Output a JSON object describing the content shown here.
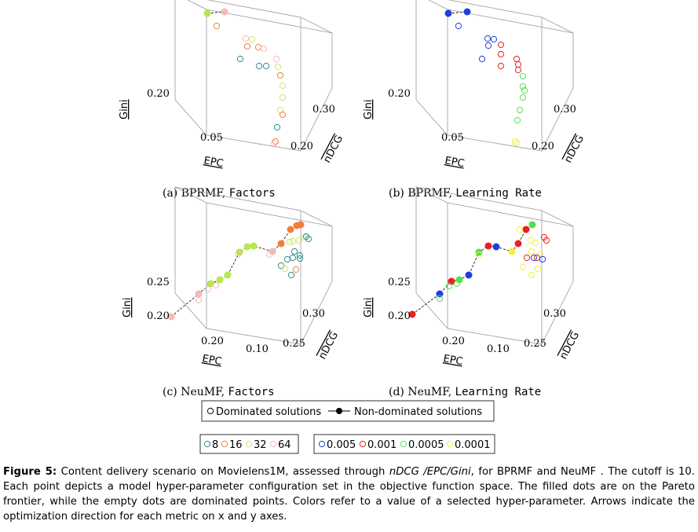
{
  "figure": {
    "subplots": [
      {
        "caption_prefix": "(a) BPRMF, ",
        "caption_param": "Factors",
        "gini_tick": "0.20",
        "epc_tick": "0.05",
        "ndcg_ticks": [
          "0.20",
          "0.30"
        ],
        "legend_group": "factors"
      },
      {
        "caption_prefix": "(b) BPRMF, ",
        "caption_param": "Learning Rate",
        "gini_tick": "0.20",
        "epc_tick": "0.05",
        "ndcg_ticks": [
          "0.20",
          "0.30"
        ],
        "legend_group": "lr"
      },
      {
        "caption_prefix": "(c) NeuMF, ",
        "caption_param": "Factors",
        "gini_ticks": [
          "0.20",
          "0.25"
        ],
        "epc_ticks": [
          "0.20",
          "0.10"
        ],
        "ndcg_ticks": [
          "0.25",
          "0.30"
        ],
        "legend_group": "factors"
      },
      {
        "caption_prefix": "(d) NeuMF, ",
        "caption_param": "Learning Rate",
        "gini_ticks": [
          "0.20",
          "0.25"
        ],
        "epc_ticks": [
          "0.20",
          "0.10"
        ],
        "ndcg_ticks": [
          "0.25",
          "0.30"
        ],
        "legend_group": "lr"
      }
    ],
    "axis_labels": {
      "gini": "Gini",
      "epc": "EPC",
      "ndcg": "nDCG"
    },
    "legend_main": {
      "dominated": "Dominated solutions",
      "non_dominated": "Non-dominated solutions"
    },
    "legend_factors": [
      {
        "label": "8",
        "color": "#2e8b8b"
      },
      {
        "label": "16",
        "color": "#f07f3c"
      },
      {
        "label": "32",
        "color": "#c8e86a"
      },
      {
        "label": "64",
        "color": "#f6b8b8"
      }
    ],
    "legend_lr": [
      {
        "label": "0.005",
        "color": "#1f3fe0"
      },
      {
        "label": "0.001",
        "color": "#e82020"
      },
      {
        "label": "0.0005",
        "color": "#52e052"
      },
      {
        "label": "0.0001",
        "color": "#f2f03a"
      }
    ]
  },
  "caption": {
    "figure_label": "Figure 5:",
    "text_1": " Content delivery scenario on Movielens1M, assessed through ",
    "metrics": "nDCG /EPC/Gini",
    "text_2": ", for BPRMF and NeuMF . The cutoff is 10. Each point depicts a model hyper-parameter configuration set in the objective function space. The filled dots are on the Pareto frontier, while the empty dots are dominated points. Colors refer to a value of a selected hyper-parameter. Arrows indicate the optimization direction for each metric on x and y axes."
  }
}
